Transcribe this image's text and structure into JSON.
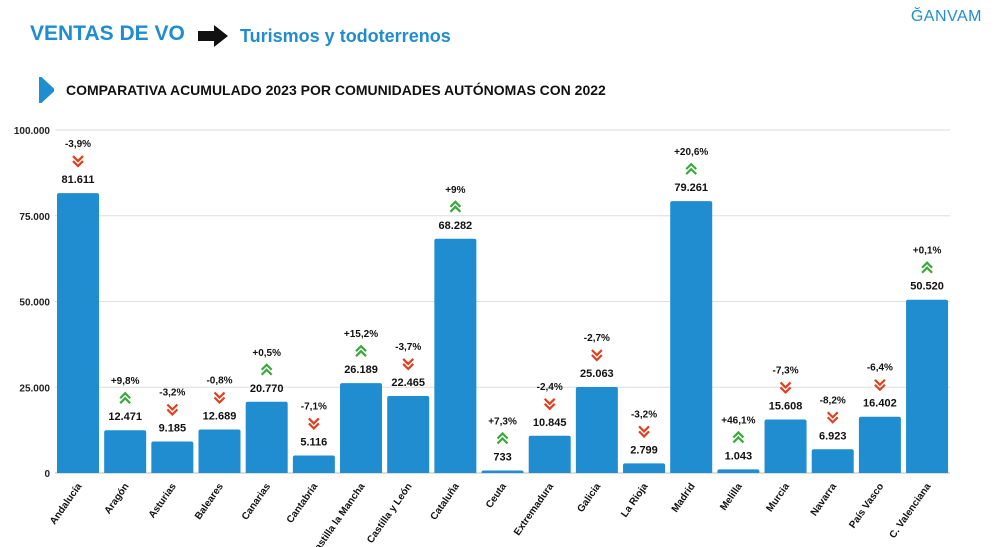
{
  "header": {
    "title": "VENTAS DE VO",
    "subtitle": "Turismos y todoterrenos",
    "logo": "ĞANVAM"
  },
  "colors": {
    "bar": "#1f8dd0",
    "up": "#3aa83a",
    "down": "#e0401f",
    "title": "#1f8dd0"
  },
  "chart_data": {
    "type": "bar",
    "title": "COMPARATIVA ACUMULADO 2023 POR COMUNIDADES AUTÓNOMAS CON 2022",
    "categories": [
      "Andalucía",
      "Aragón",
      "Asturias",
      "Baleares",
      "Canarias",
      "Cantabria",
      "Castilla la Mancha",
      "Castilla y León",
      "Cataluña",
      "Ceuta",
      "Extremadura",
      "Galicia",
      "La Rioja",
      "Madrid",
      "Melilla",
      "Murcia",
      "Navarra",
      "País Vasco",
      "C. Valenciana"
    ],
    "values": [
      81611,
      12471,
      9185,
      12689,
      20770,
      5116,
      26189,
      22465,
      68282,
      733,
      10845,
      25063,
      2799,
      79261,
      1043,
      15608,
      6923,
      16402,
      50520
    ],
    "value_labels": [
      "81.611",
      "12.471",
      "9.185",
      "12.689",
      "20.770",
      "5.116",
      "26.189",
      "22.465",
      "68.282",
      "733",
      "10.845",
      "25.063",
      "2.799",
      "79.261",
      "1.043",
      "15.608",
      "6.923",
      "16.402",
      "50.520"
    ],
    "change_labels": [
      "-3,9%",
      "+9,8%",
      "-3,2%",
      "-0,8%",
      "+0,5%",
      "-7,1%",
      "+15,2%",
      "-3,7%",
      "+9%",
      "+7,3%",
      "-2,4%",
      "-2,7%",
      "-3,2%",
      "+20,6%",
      "+46,1%",
      "-7,3%",
      "-8,2%",
      "-6,4%",
      "+0,1%"
    ],
    "trend": [
      "down",
      "up",
      "down",
      "down",
      "up",
      "down",
      "up",
      "down",
      "up",
      "up",
      "down",
      "down",
      "down",
      "up",
      "up",
      "down",
      "down",
      "down",
      "up"
    ],
    "ylim": [
      0,
      100000
    ],
    "yticks": [
      0,
      25000,
      50000,
      75000,
      100000
    ],
    "ytick_labels": [
      "0",
      "25.000",
      "50.000",
      "75.000",
      "100.000"
    ],
    "grid": true
  }
}
